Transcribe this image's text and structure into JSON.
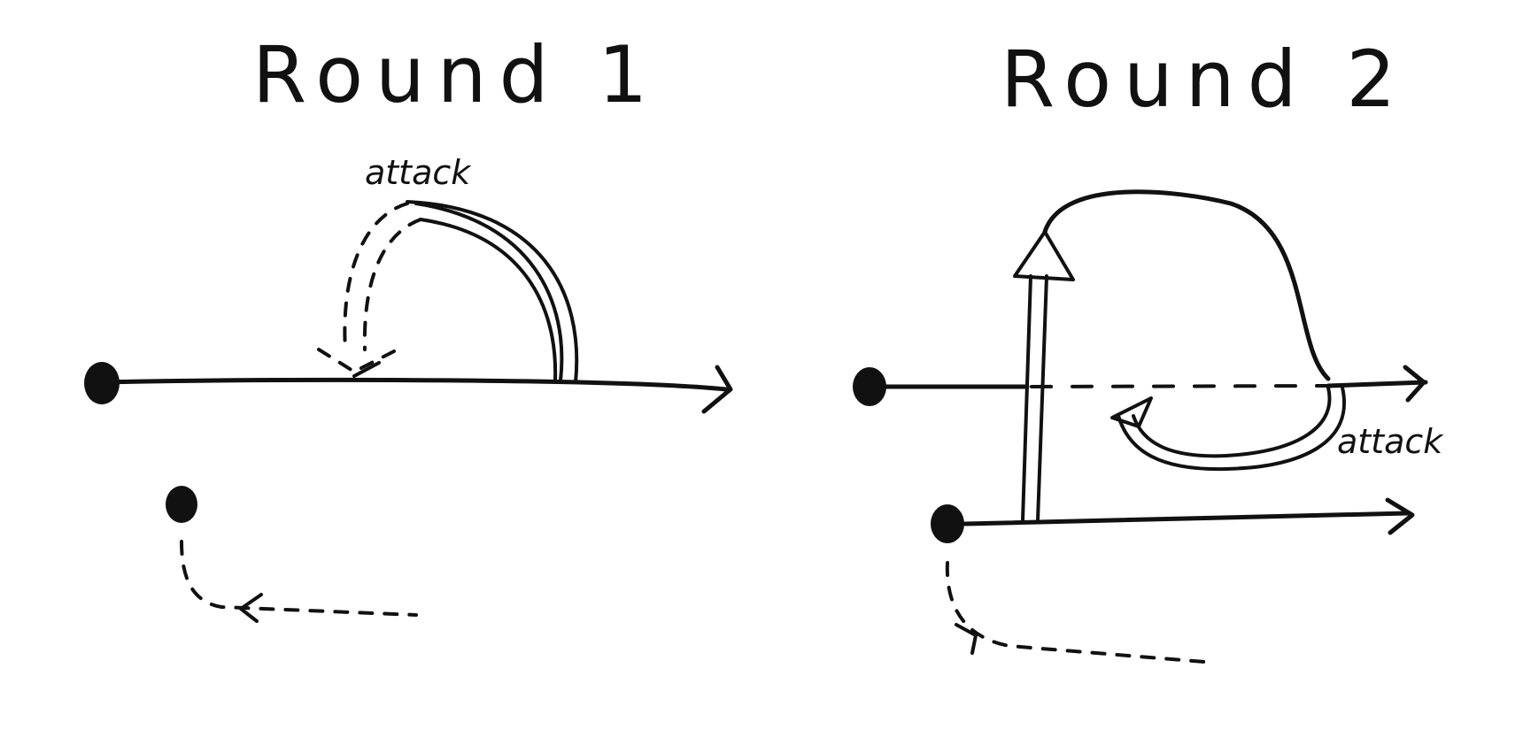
{
  "panels": [
    {
      "title": "Round 1",
      "annotation": "attack"
    },
    {
      "title": "Round 2",
      "annotation": "attack"
    }
  ],
  "colors": {
    "ink": "#111111",
    "paper": "#ffffff"
  }
}
